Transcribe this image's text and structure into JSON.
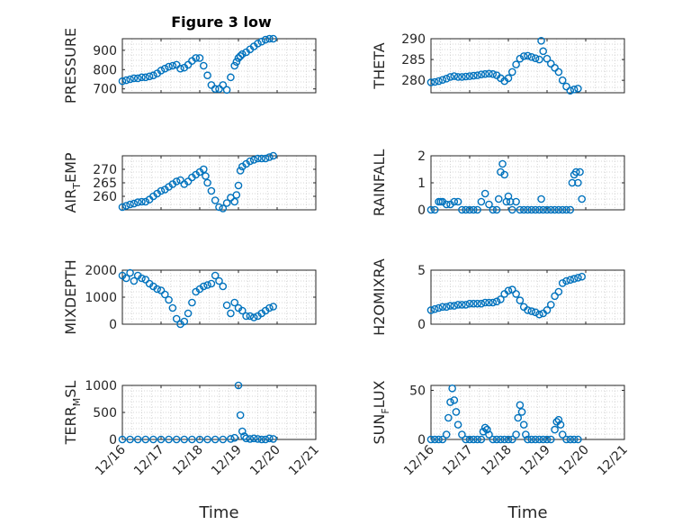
{
  "figure": {
    "title": "Figure 3 low",
    "marker_color": "#0072BD",
    "grid": "minor dotted"
  },
  "chart_data": [
    {
      "type": "scatter",
      "ylabel": "PRESSURE",
      "ylim": [
        680,
        960
      ],
      "yticks": [
        700,
        800,
        900
      ],
      "xlim": [
        16.0,
        21.0
      ],
      "xticks": [
        16,
        17,
        18,
        19,
        20,
        21
      ],
      "xtick_labels": [],
      "x": [
        16.0,
        16.1,
        16.2,
        16.3,
        16.4,
        16.5,
        16.6,
        16.7,
        16.8,
        16.9,
        17.0,
        17.1,
        17.2,
        17.3,
        17.4,
        17.5,
        17.6,
        17.7,
        17.8,
        17.9,
        18.0,
        18.1,
        18.2,
        18.3,
        18.4,
        18.5,
        18.6,
        18.7,
        18.8,
        18.9,
        18.95,
        19.0,
        19.05,
        19.1,
        19.2,
        19.3,
        19.4,
        19.5,
        19.6,
        19.7,
        19.8,
        19.9
      ],
      "y": [
        740,
        745,
        750,
        755,
        755,
        760,
        760,
        765,
        770,
        780,
        795,
        805,
        815,
        820,
        825,
        805,
        810,
        825,
        845,
        860,
        860,
        820,
        770,
        720,
        700,
        700,
        720,
        695,
        760,
        820,
        840,
        860,
        870,
        880,
        890,
        905,
        920,
        935,
        945,
        955,
        960,
        960
      ]
    },
    {
      "type": "scatter",
      "ylabel": "THETA",
      "ylim": [
        277,
        290
      ],
      "yticks": [
        280,
        285,
        290
      ],
      "xlim": [
        16.0,
        21.0
      ],
      "xticks": [
        16,
        17,
        18,
        19,
        20,
        21
      ],
      "xtick_labels": [],
      "x": [
        16.0,
        16.1,
        16.2,
        16.3,
        16.4,
        16.5,
        16.6,
        16.7,
        16.8,
        16.9,
        17.0,
        17.1,
        17.2,
        17.3,
        17.4,
        17.5,
        17.6,
        17.7,
        17.8,
        17.9,
        18.0,
        18.1,
        18.2,
        18.3,
        18.4,
        18.5,
        18.6,
        18.7,
        18.8,
        18.85,
        18.9,
        19.0,
        19.1,
        19.2,
        19.3,
        19.4,
        19.5,
        19.6,
        19.7,
        19.8
      ],
      "y": [
        279.5,
        279.6,
        279.8,
        280.1,
        280.4,
        280.8,
        281.0,
        280.8,
        280.8,
        280.9,
        281.0,
        281.1,
        281.2,
        281.4,
        281.5,
        281.6,
        281.5,
        281.2,
        280.5,
        279.8,
        280.5,
        282.0,
        283.8,
        285.2,
        285.8,
        285.9,
        285.6,
        285.3,
        285.0,
        289.5,
        287.0,
        285.2,
        284.0,
        283.0,
        282.0,
        280.0,
        278.5,
        277.5,
        277.8,
        278.0
      ]
    },
    {
      "type": "scatter",
      "ylabel": "AIR_TEMP",
      "ylabel_main": "AIR",
      "ylabel_sub": "T",
      "ylabel_rest": "EMP",
      "ylim": [
        255,
        275
      ],
      "yticks": [
        260,
        265,
        270
      ],
      "xlim": [
        16.0,
        21.0
      ],
      "xticks": [
        16,
        17,
        18,
        19,
        20,
        21
      ],
      "xtick_labels": [],
      "x": [
        16.0,
        16.1,
        16.2,
        16.3,
        16.4,
        16.5,
        16.6,
        16.7,
        16.8,
        16.9,
        17.0,
        17.1,
        17.2,
        17.3,
        17.4,
        17.5,
        17.6,
        17.7,
        17.8,
        17.9,
        18.0,
        18.1,
        18.15,
        18.2,
        18.3,
        18.4,
        18.5,
        18.6,
        18.7,
        18.8,
        18.9,
        18.95,
        19.0,
        19.05,
        19.1,
        19.2,
        19.3,
        19.4,
        19.5,
        19.6,
        19.7,
        19.8,
        19.9
      ],
      "y": [
        256.0,
        256.5,
        257.0,
        257.3,
        257.8,
        258.0,
        258.0,
        258.8,
        260.0,
        261.0,
        262.0,
        262.5,
        263.5,
        264.5,
        265.5,
        266.0,
        264.5,
        265.5,
        267.0,
        268.0,
        269.0,
        270.0,
        267.5,
        265.0,
        262.0,
        258.5,
        256.0,
        255.5,
        257.5,
        259.5,
        258.0,
        260.5,
        264.0,
        269.5,
        271.0,
        272.0,
        273.0,
        273.5,
        274.0,
        274.0,
        274.0,
        274.5,
        275.0
      ]
    },
    {
      "type": "scatter",
      "ylabel": "RAINFALL",
      "ylim": [
        0,
        2
      ],
      "yticks": [
        0,
        1,
        2
      ],
      "xlim": [
        16.0,
        21.0
      ],
      "xticks": [
        16,
        17,
        18,
        19,
        20,
        21
      ],
      "xtick_labels": [],
      "x": [
        16.0,
        16.1,
        16.2,
        16.25,
        16.3,
        16.4,
        16.5,
        16.6,
        16.7,
        16.8,
        16.9,
        17.0,
        17.1,
        17.2,
        17.3,
        17.4,
        17.5,
        17.6,
        17.7,
        17.75,
        17.8,
        17.85,
        17.9,
        17.95,
        18.0,
        18.05,
        18.1,
        18.2,
        18.3,
        18.4,
        18.5,
        18.6,
        18.7,
        18.8,
        18.85,
        18.9,
        19.0,
        19.1,
        19.2,
        19.3,
        19.4,
        19.5,
        19.6,
        19.65,
        19.7,
        19.75,
        19.8,
        19.85,
        19.9
      ],
      "y": [
        0,
        0,
        0.3,
        0.3,
        0.3,
        0.2,
        0.2,
        0.3,
        0.3,
        0,
        0,
        0,
        0,
        0,
        0.3,
        0.6,
        0.2,
        0,
        0,
        0.4,
        1.4,
        1.7,
        1.3,
        0.3,
        0.5,
        0.3,
        0,
        0.3,
        0,
        0,
        0,
        0,
        0,
        0,
        0.4,
        0,
        0,
        0,
        0,
        0,
        0,
        0,
        0,
        1.0,
        1.3,
        1.4,
        1.0,
        1.4,
        0.4
      ]
    },
    {
      "type": "scatter",
      "ylabel": "MIXDEPTH",
      "ylim": [
        0,
        2000
      ],
      "yticks": [
        0,
        1000,
        2000
      ],
      "xlim": [
        16.0,
        21.0
      ],
      "xticks": [
        16,
        17,
        18,
        19,
        20,
        21
      ],
      "xtick_labels": [],
      "x": [
        16.0,
        16.1,
        16.2,
        16.3,
        16.4,
        16.5,
        16.6,
        16.7,
        16.8,
        16.9,
        17.0,
        17.1,
        17.2,
        17.3,
        17.4,
        17.5,
        17.6,
        17.7,
        17.8,
        17.9,
        18.0,
        18.1,
        18.2,
        18.3,
        18.4,
        18.5,
        18.6,
        18.7,
        18.8,
        18.9,
        19.0,
        19.1,
        19.2,
        19.3,
        19.4,
        19.5,
        19.6,
        19.7,
        19.8,
        19.9
      ],
      "y": [
        1800,
        1700,
        1900,
        1600,
        1800,
        1700,
        1650,
        1500,
        1400,
        1300,
        1250,
        1100,
        900,
        600,
        200,
        0,
        100,
        400,
        800,
        1200,
        1300,
        1400,
        1450,
        1500,
        1800,
        1600,
        1400,
        700,
        400,
        800,
        600,
        500,
        300,
        300,
        250,
        300,
        400,
        500,
        600,
        650
      ]
    },
    {
      "type": "scatter",
      "ylabel": "H2OMIXRA",
      "ylim": [
        0,
        5
      ],
      "yticks": [
        0,
        5
      ],
      "xlim": [
        16.0,
        21.0
      ],
      "xticks": [
        16,
        17,
        18,
        19,
        20,
        21
      ],
      "xtick_labels": [],
      "x": [
        16.0,
        16.1,
        16.2,
        16.3,
        16.4,
        16.5,
        16.6,
        16.7,
        16.8,
        16.9,
        17.0,
        17.1,
        17.2,
        17.3,
        17.4,
        17.5,
        17.6,
        17.7,
        17.8,
        17.9,
        18.0,
        18.1,
        18.2,
        18.3,
        18.4,
        18.5,
        18.6,
        18.7,
        18.8,
        18.9,
        19.0,
        19.1,
        19.2,
        19.3,
        19.4,
        19.5,
        19.6,
        19.7,
        19.8,
        19.9
      ],
      "y": [
        1.3,
        1.4,
        1.5,
        1.6,
        1.6,
        1.7,
        1.7,
        1.8,
        1.8,
        1.8,
        1.9,
        1.9,
        1.9,
        1.9,
        2.0,
        2.0,
        2.0,
        2.1,
        2.3,
        2.8,
        3.1,
        3.2,
        2.8,
        2.2,
        1.6,
        1.3,
        1.2,
        1.1,
        0.9,
        1.0,
        1.3,
        1.8,
        2.6,
        3.0,
        3.8,
        4.0,
        4.1,
        4.2,
        4.3,
        4.4
      ]
    },
    {
      "type": "scatter",
      "ylabel": "TERR_MSL",
      "ylabel_main": "TERR",
      "ylabel_sub": "M",
      "ylabel_rest": "SL",
      "ylim": [
        0,
        1000
      ],
      "yticks": [
        0,
        500,
        1000
      ],
      "xlim": [
        16.0,
        21.0
      ],
      "xticks": [
        16,
        17,
        18,
        19,
        20,
        21
      ],
      "xtick_labels": [
        "12/16",
        "12/17",
        "12/18",
        "12/19",
        "12/20",
        "12/21"
      ],
      "xlabel": "Time",
      "x": [
        16.0,
        16.2,
        16.4,
        16.6,
        16.8,
        17.0,
        17.2,
        17.4,
        17.6,
        17.8,
        18.0,
        18.2,
        18.4,
        18.6,
        18.8,
        18.9,
        19.0,
        19.05,
        19.1,
        19.15,
        19.2,
        19.3,
        19.4,
        19.5,
        19.6,
        19.7,
        19.8,
        19.9
      ],
      "y": [
        0,
        0,
        0,
        0,
        0,
        0,
        0,
        0,
        0,
        0,
        0,
        0,
        0,
        0,
        10,
        30,
        1000,
        450,
        150,
        60,
        20,
        10,
        20,
        10,
        0,
        0,
        20,
        10
      ]
    },
    {
      "type": "scatter",
      "ylabel": "SUN_FLUX",
      "ylabel_main": "SUN",
      "ylabel_sub": "F",
      "ylabel_rest": "LUX",
      "ylim": [
        0,
        55
      ],
      "yticks": [
        0,
        50
      ],
      "xlim": [
        16.0,
        21.0
      ],
      "xticks": [
        16,
        17,
        18,
        19,
        20,
        21
      ],
      "xtick_labels": [
        "12/16",
        "12/17",
        "12/18",
        "12/19",
        "12/20",
        "12/21"
      ],
      "xlabel": "Time",
      "x": [
        16.0,
        16.1,
        16.2,
        16.3,
        16.4,
        16.45,
        16.5,
        16.55,
        16.6,
        16.65,
        16.7,
        16.8,
        16.9,
        17.0,
        17.1,
        17.2,
        17.3,
        17.35,
        17.4,
        17.45,
        17.5,
        17.6,
        17.7,
        17.8,
        17.9,
        18.0,
        18.1,
        18.2,
        18.25,
        18.3,
        18.35,
        18.4,
        18.45,
        18.5,
        18.6,
        18.7,
        18.8,
        18.9,
        19.0,
        19.1,
        19.2,
        19.25,
        19.3,
        19.35,
        19.4,
        19.5,
        19.6,
        19.7,
        19.8
      ],
      "y": [
        0,
        0,
        0,
        0,
        5,
        22,
        38,
        52,
        40,
        28,
        15,
        5,
        0,
        0,
        0,
        0,
        0,
        8,
        12,
        10,
        5,
        0,
        0,
        0,
        0,
        0,
        0,
        5,
        22,
        35,
        28,
        15,
        5,
        0,
        0,
        0,
        0,
        0,
        0,
        0,
        10,
        18,
        20,
        15,
        5,
        0,
        0,
        0,
        0
      ]
    }
  ]
}
